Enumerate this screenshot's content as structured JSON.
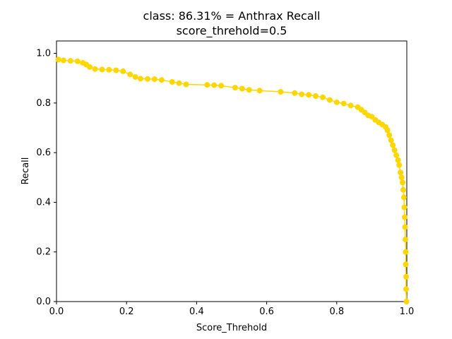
{
  "chart_data": {
    "type": "line",
    "title": "class: 86.31% = Anthrax Recall",
    "subtitle": "score_threhold=0.5",
    "xlabel": "Score_Threhold",
    "ylabel": "Recall",
    "xlim": [
      0,
      1
    ],
    "ylim": [
      0,
      1.05
    ],
    "x_ticks": [
      "0.0",
      "0.2",
      "0.4",
      "0.6",
      "0.8",
      "1.0"
    ],
    "y_ticks": [
      "0.0",
      "0.2",
      "0.4",
      "0.6",
      "0.8",
      "1.0"
    ],
    "grid": false,
    "legend": "none",
    "series": [
      {
        "color": "#ffd700",
        "marker": "circle",
        "points": [
          [
            0.005,
            0.975
          ],
          [
            0.02,
            0.972
          ],
          [
            0.04,
            0.97
          ],
          [
            0.06,
            0.968
          ],
          [
            0.075,
            0.962
          ],
          [
            0.085,
            0.955
          ],
          [
            0.095,
            0.945
          ],
          [
            0.11,
            0.937
          ],
          [
            0.13,
            0.935
          ],
          [
            0.15,
            0.934
          ],
          [
            0.17,
            0.932
          ],
          [
            0.19,
            0.928
          ],
          [
            0.21,
            0.915
          ],
          [
            0.225,
            0.905
          ],
          [
            0.24,
            0.898
          ],
          [
            0.26,
            0.897
          ],
          [
            0.28,
            0.896
          ],
          [
            0.3,
            0.893
          ],
          [
            0.33,
            0.885
          ],
          [
            0.35,
            0.88
          ],
          [
            0.37,
            0.875
          ],
          [
            0.43,
            0.873
          ],
          [
            0.45,
            0.872
          ],
          [
            0.47,
            0.87
          ],
          [
            0.51,
            0.862
          ],
          [
            0.53,
            0.858
          ],
          [
            0.55,
            0.853
          ],
          [
            0.58,
            0.85
          ],
          [
            0.64,
            0.845
          ],
          [
            0.68,
            0.84
          ],
          [
            0.7,
            0.835
          ],
          [
            0.72,
            0.833
          ],
          [
            0.74,
            0.828
          ],
          [
            0.76,
            0.823
          ],
          [
            0.78,
            0.812
          ],
          [
            0.8,
            0.803
          ],
          [
            0.82,
            0.798
          ],
          [
            0.84,
            0.79
          ],
          [
            0.86,
            0.783
          ],
          [
            0.87,
            0.773
          ],
          [
            0.88,
            0.762
          ],
          [
            0.89,
            0.75
          ],
          [
            0.9,
            0.745
          ],
          [
            0.91,
            0.732
          ],
          [
            0.92,
            0.722
          ],
          [
            0.93,
            0.713
          ],
          [
            0.94,
            0.703
          ],
          [
            0.945,
            0.69
          ],
          [
            0.95,
            0.67
          ],
          [
            0.955,
            0.65
          ],
          [
            0.96,
            0.63
          ],
          [
            0.965,
            0.61
          ],
          [
            0.97,
            0.59
          ],
          [
            0.975,
            0.57
          ],
          [
            0.978,
            0.55
          ],
          [
            0.982,
            0.52
          ],
          [
            0.985,
            0.5
          ],
          [
            0.988,
            0.48
          ],
          [
            0.99,
            0.45
          ],
          [
            0.992,
            0.42
          ],
          [
            0.993,
            0.38
          ],
          [
            0.994,
            0.34
          ],
          [
            0.995,
            0.3
          ],
          [
            0.996,
            0.25
          ],
          [
            0.997,
            0.2
          ],
          [
            0.997,
            0.15
          ],
          [
            0.998,
            0.1
          ],
          [
            0.998,
            0.05
          ],
          [
            0.999,
            0.0
          ]
        ]
      }
    ]
  }
}
